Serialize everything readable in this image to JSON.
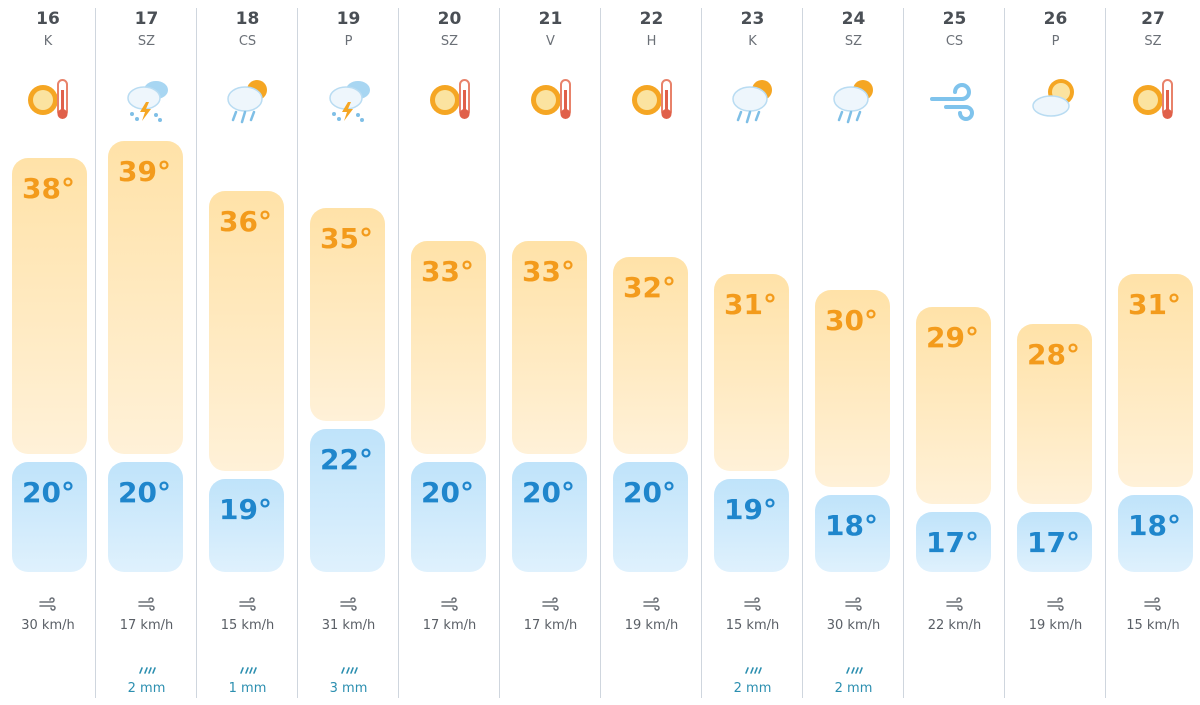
{
  "forecast": {
    "days": [
      {
        "day": "16",
        "dow": "K",
        "icon": "sun-thermometer-icon",
        "high": "38°",
        "low": "20°",
        "wind": "30 km/h",
        "rain": ""
      },
      {
        "day": "17",
        "dow": "SZ",
        "icon": "thunderstorm-rain-icon",
        "high": "39°",
        "low": "20°",
        "wind": "17 km/h",
        "rain": "2 mm"
      },
      {
        "day": "18",
        "dow": "CS",
        "icon": "sun-cloud-rain-icon",
        "high": "36°",
        "low": "19°",
        "wind": "15 km/h",
        "rain": "1 mm"
      },
      {
        "day": "19",
        "dow": "P",
        "icon": "thunderstorm-rain-icon",
        "high": "35°",
        "low": "22°",
        "wind": "31 km/h",
        "rain": "3 mm"
      },
      {
        "day": "20",
        "dow": "SZ",
        "icon": "sun-thermometer-icon",
        "high": "33°",
        "low": "20°",
        "wind": "17 km/h",
        "rain": ""
      },
      {
        "day": "21",
        "dow": "V",
        "icon": "sun-thermometer-icon",
        "high": "33°",
        "low": "20°",
        "wind": "17 km/h",
        "rain": ""
      },
      {
        "day": "22",
        "dow": "H",
        "icon": "sun-thermometer-icon",
        "high": "32°",
        "low": "20°",
        "wind": "19 km/h",
        "rain": ""
      },
      {
        "day": "23",
        "dow": "K",
        "icon": "sun-cloud-rain-icon",
        "high": "31°",
        "low": "19°",
        "wind": "15 km/h",
        "rain": "2 mm"
      },
      {
        "day": "24",
        "dow": "SZ",
        "icon": "sun-cloud-rain-icon",
        "high": "30°",
        "low": "18°",
        "wind": "30 km/h",
        "rain": "2 mm"
      },
      {
        "day": "25",
        "dow": "CS",
        "icon": "wind-icon",
        "high": "29°",
        "low": "17°",
        "wind": "22 km/h",
        "rain": ""
      },
      {
        "day": "26",
        "dow": "P",
        "icon": "partly-cloudy-icon",
        "high": "28°",
        "low": "17°",
        "wind": "19 km/h",
        "rain": ""
      },
      {
        "day": "27",
        "dow": "SZ",
        "icon": "sun-thermometer-icon",
        "high": "31°",
        "low": "18°",
        "wind": "15 km/h",
        "rain": ""
      }
    ]
  },
  "colors": {
    "high": "#f39b1c",
    "low": "#1f86cc",
    "rain": "#2c8fb0"
  }
}
